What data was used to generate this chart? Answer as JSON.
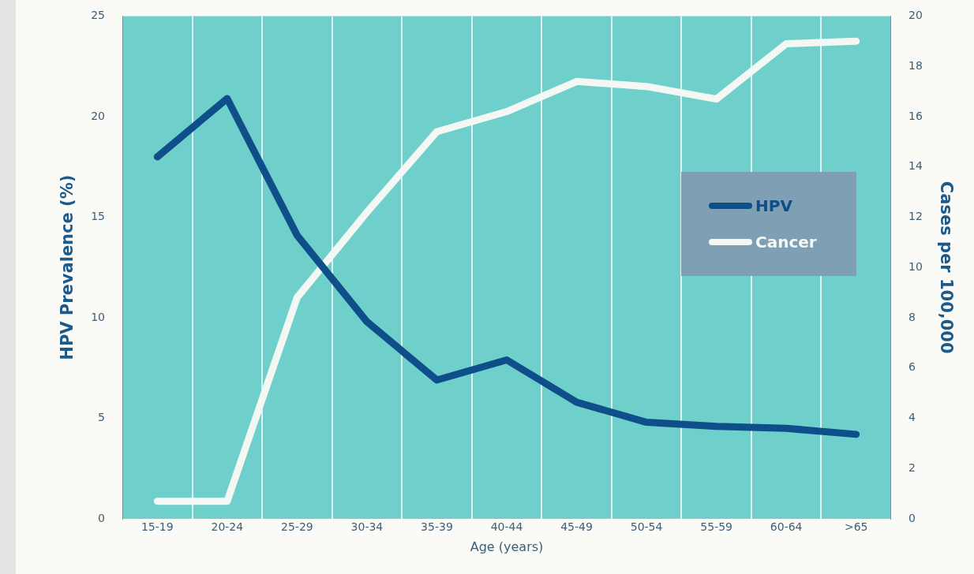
{
  "chart_data": {
    "type": "line",
    "xlabel": "Age (years)",
    "ylabel": "HPV Prevalence (%)",
    "y2label": "Cases per 100,000",
    "categories": [
      "15-19",
      "20-24",
      "25-29",
      "30-34",
      "35-39",
      "40-44",
      "45-49",
      "50-54",
      "55-59",
      "60-64",
      ">65"
    ],
    "series": [
      {
        "name": "HPV",
        "color": "#0e4f8a",
        "values": [
          18.0,
          20.9,
          14.1,
          9.8,
          6.9,
          7.9,
          5.8,
          4.8,
          4.6,
          4.5,
          4.2
        ]
      },
      {
        "name": "Cancer",
        "color": "#f4f8f4",
        "axis": "y2",
        "values": [
          0.7,
          0.7,
          8.8,
          12.2,
          15.4,
          16.2,
          17.4,
          17.2,
          16.7,
          18.9,
          19.0
        ]
      }
    ],
    "ylim": [
      0,
      25
    ],
    "yticks": [
      0,
      5,
      10,
      15,
      20,
      25
    ],
    "y2lim": [
      0,
      20
    ],
    "y2ticks": [
      0,
      2,
      4,
      6,
      8,
      10,
      12,
      14,
      16,
      18,
      20
    ],
    "grid": "x",
    "legend": "right",
    "marker": "none",
    "line_style": "solid"
  }
}
